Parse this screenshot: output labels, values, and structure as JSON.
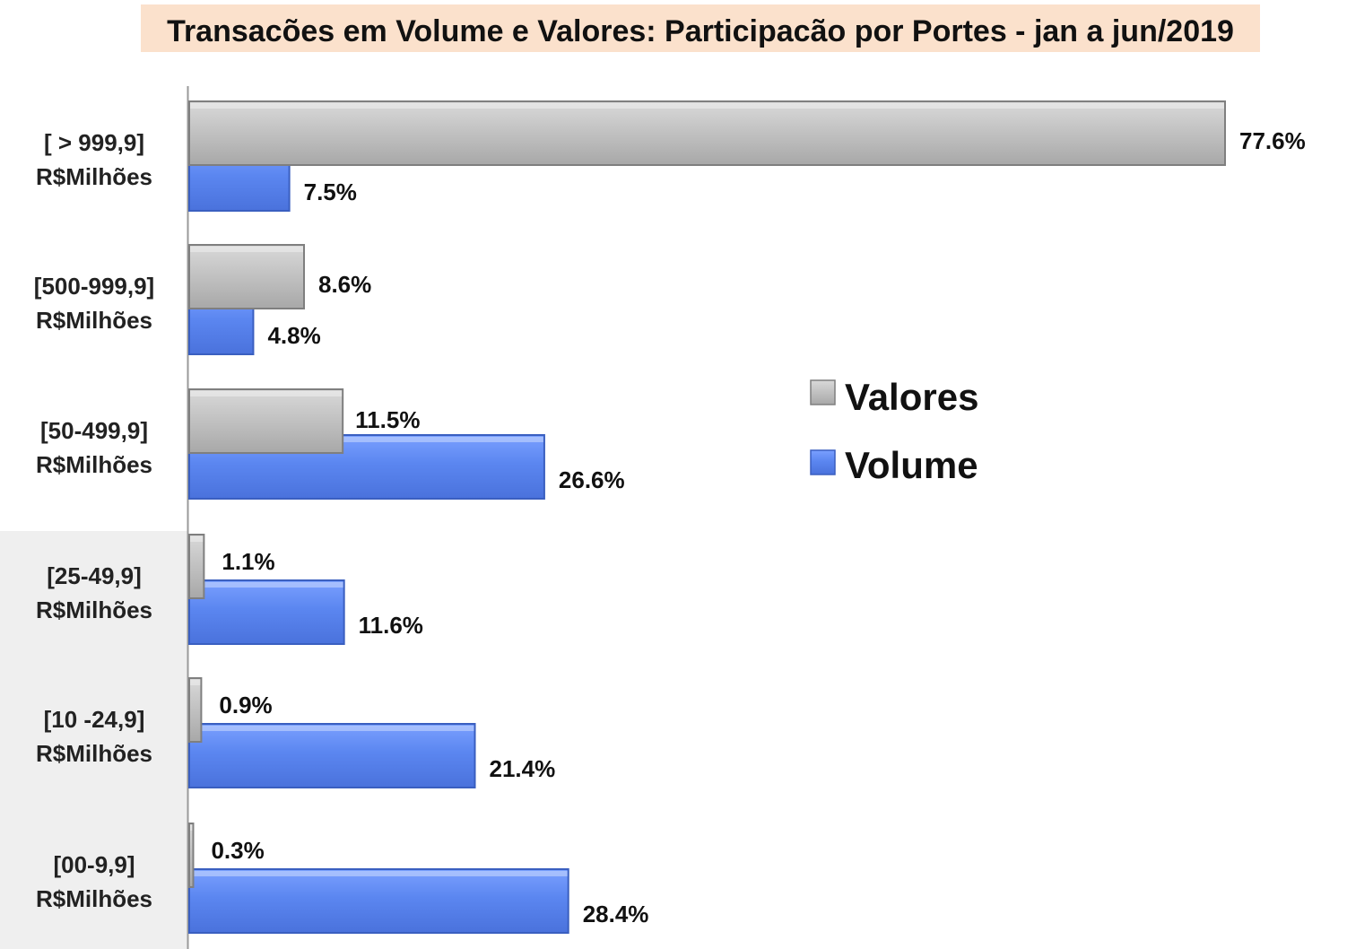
{
  "chart_data": {
    "type": "bar",
    "orientation": "horizontal",
    "title": "Transacões em Volume e Valores: Participacão por Portes -  jan a jun/2019",
    "categories": [
      [
        "[ > 999,9]",
        "R$Milhões"
      ],
      [
        "[500-999,9]",
        "R$Milhões"
      ],
      [
        "[50-499,9]",
        "R$Milhões"
      ],
      [
        "[25-49,9]",
        "R$Milhões"
      ],
      [
        "[10 -24,9]",
        "R$Milhões"
      ],
      [
        "[00-9,9]",
        "R$Milhões"
      ]
    ],
    "series": [
      {
        "name": "Valores",
        "values": [
          77.6,
          8.6,
          11.5,
          1.1,
          0.9,
          0.3
        ],
        "labels": [
          "77.6%",
          "8.6%",
          "11.5%",
          "1.1%",
          "0.9%",
          "0.3%"
        ]
      },
      {
        "name": "Volume",
        "values": [
          7.5,
          4.8,
          26.6,
          11.6,
          21.4,
          28.4
        ],
        "labels": [
          "7.5%",
          "4.8%",
          "26.6%",
          "11.6%",
          "21.4%",
          "28.4%"
        ]
      }
    ],
    "xlim": [
      0,
      80
    ],
    "grid": false,
    "legend_position": "right",
    "colors": {
      "title_background": "#fbe1cc",
      "valores": "#c0c0c0",
      "valores_edge": "#7f7f7f",
      "volume": "#5b86f0",
      "volume_edge": "#3a5fc0",
      "lower_band_background": "#efefef"
    }
  }
}
